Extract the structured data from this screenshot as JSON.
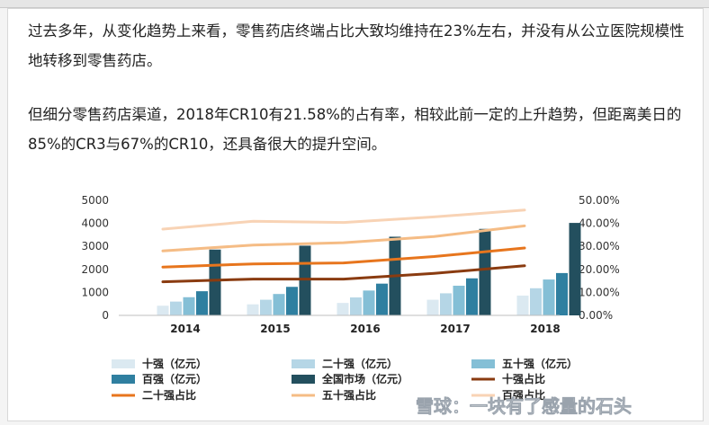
{
  "paragraphs": [
    "过去多年，从变化趋势上来看，零售药店终端占比大致均维持在23%左右，并没有从公立医院规模性地转移到零售药店。",
    "但细分零售药店渠道，2018年CR10有21.58%的占有率，相较此前一定的上升趋势，但距离美日的85%的CR3与67%的CR10，还具备很大的提升空间。"
  ],
  "watermark": "雪球：一块有了感量的石头",
  "colors": {
    "bar_top10": "#dbe9f1",
    "bar_top20": "#b5d6e6",
    "bar_top50": "#84bfd6",
    "bar_top100": "#2f7fa0",
    "bar_national": "#234f5e",
    "line_top10": "#8a3b10",
    "line_top20": "#e7751d",
    "line_top50": "#f5bc85",
    "line_top100": "#f8d3b5"
  },
  "chart_data": {
    "type": "bar",
    "categories": [
      "2014",
      "2015",
      "2016",
      "2017",
      "2018"
    ],
    "ylim": [
      0,
      5000
    ],
    "y2lim": [
      0,
      0.5
    ],
    "yticks": [
      "0",
      "1000",
      "2000",
      "3000",
      "4000",
      "5000"
    ],
    "y2ticks": [
      "0.00%",
      "10.00%",
      "20.00%",
      "30.00%",
      "40.00%",
      "50.00%"
    ],
    "bar_series": [
      {
        "name": "十强（亿元）",
        "values": [
          420,
          480,
          540,
          680,
          860
        ]
      },
      {
        "name": "二十强（亿元）",
        "values": [
          600,
          680,
          780,
          960,
          1180
        ]
      },
      {
        "name": "五十强（亿元）",
        "values": [
          790,
          930,
          1080,
          1290,
          1560
        ]
      },
      {
        "name": "百强（亿元）",
        "values": [
          1050,
          1240,
          1380,
          1610,
          1840
        ]
      },
      {
        "name": "全国市场（亿元）",
        "values": [
          2860,
          3030,
          3420,
          3760,
          4020
        ]
      }
    ],
    "line_series": [
      {
        "name": "十强占比",
        "values": [
          0.146,
          0.158,
          0.158,
          0.183,
          0.2158
        ]
      },
      {
        "name": "二十强占比",
        "values": [
          0.21,
          0.224,
          0.228,
          0.256,
          0.293
        ]
      },
      {
        "name": "五十强占比",
        "values": [
          0.28,
          0.306,
          0.316,
          0.343,
          0.389
        ]
      },
      {
        "name": "百强占比",
        "values": [
          0.375,
          0.409,
          0.404,
          0.428,
          0.458
        ]
      }
    ]
  }
}
